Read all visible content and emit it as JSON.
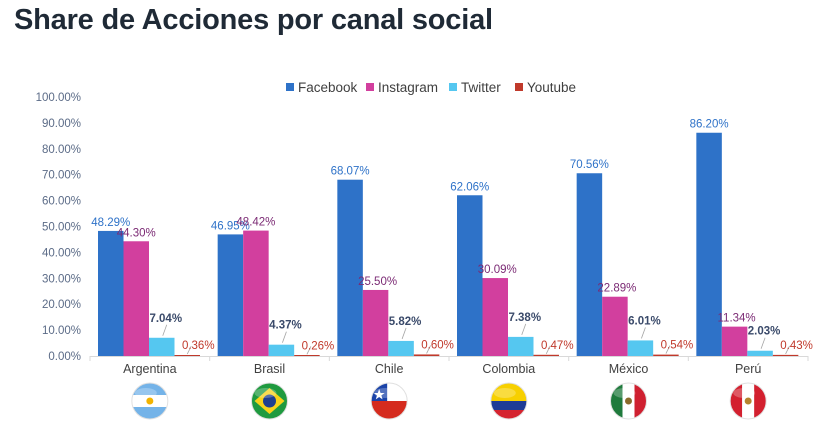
{
  "title": "Share de Acciones por canal social",
  "chart_data": {
    "type": "bar",
    "title": "Share de Acciones por canal social",
    "xlabel": "",
    "ylabel": "",
    "ylim": [
      0,
      100
    ],
    "y_ticks": [
      "0.00%",
      "10.00%",
      "20.00%",
      "30.00%",
      "40.00%",
      "50.00%",
      "60.00%",
      "70.00%",
      "80.00%",
      "90.00%",
      "100.00%"
    ],
    "categories": [
      "Argentina",
      "Brasil",
      "Chile",
      "Colombia",
      "México",
      "Perú"
    ],
    "legend_position": "top",
    "grid": false,
    "series": [
      {
        "name": "Facebook",
        "color": "#2e72c8",
        "label_color": "#2e72c8",
        "values": [
          48.29,
          46.95,
          68.07,
          62.06,
          70.56,
          86.2
        ],
        "labels": [
          "48.29%",
          "46.95%",
          "68.07%",
          "62.06%",
          "70.56%",
          "86.20%"
        ]
      },
      {
        "name": "Instagram",
        "color": "#d23f9e",
        "label_color": "#7b2a74",
        "values": [
          44.3,
          48.42,
          25.5,
          30.09,
          22.89,
          11.34
        ],
        "labels": [
          "44.30%",
          "48.42%",
          "25.50%",
          "30.09%",
          "22.89%",
          "11.34%"
        ]
      },
      {
        "name": "Twitter",
        "color": "#55c7f0",
        "label_color": "#3a4a6a",
        "values": [
          7.04,
          4.37,
          5.82,
          7.38,
          6.01,
          2.03
        ],
        "labels": [
          "7.04%",
          "4.37%",
          "5.82%",
          "7.38%",
          "6.01%",
          "2.03%"
        ]
      },
      {
        "name": "Youtube",
        "color": "#c0392b",
        "label_color": "#c0392b",
        "values": [
          0.36,
          0.26,
          0.6,
          0.47,
          0.54,
          0.43
        ],
        "labels": [
          "0.36%",
          "0.26%",
          "0.60%",
          "0.47%",
          "0.54%",
          "0.43%"
        ]
      }
    ],
    "flag_icons": [
      "argentina-flag-icon",
      "brazil-flag-icon",
      "chile-flag-icon",
      "colombia-flag-icon",
      "mexico-flag-icon",
      "peru-flag-icon"
    ]
  }
}
